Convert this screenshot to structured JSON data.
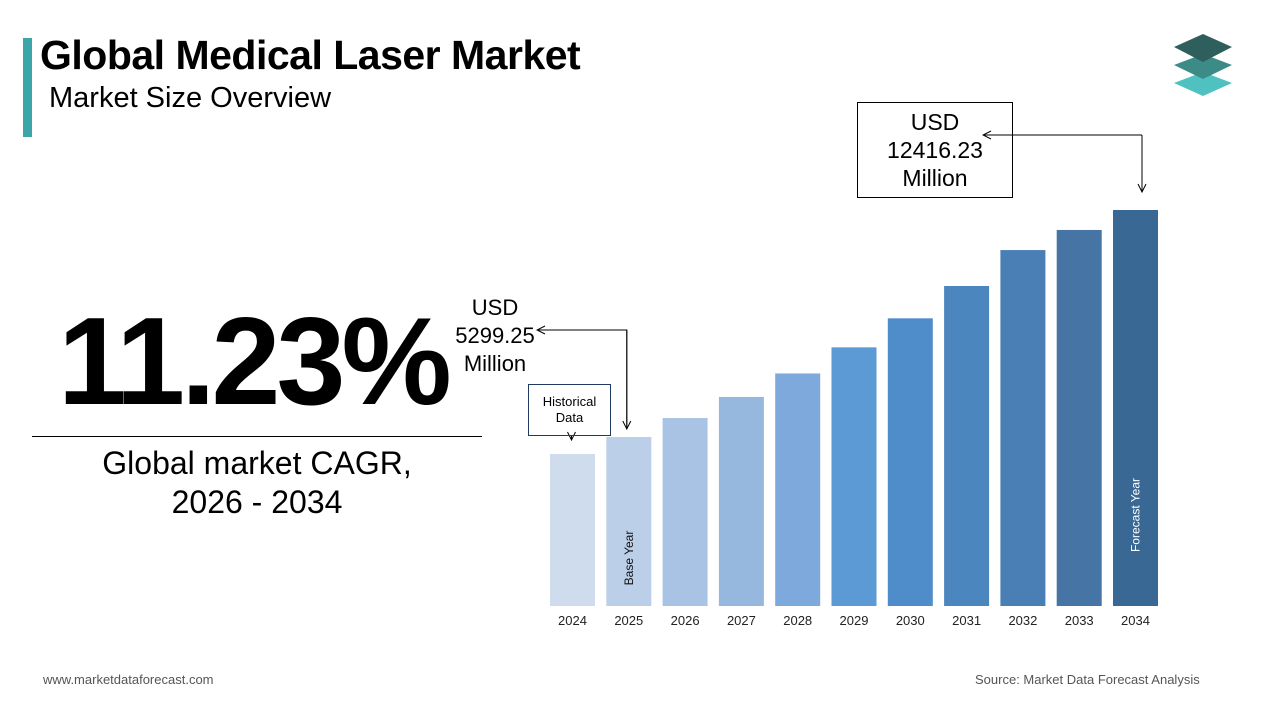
{
  "header": {
    "title": "Global Medical Laser Market",
    "subtitle": "Market Size Overview"
  },
  "logo": {
    "icon": "stacked-layers-icon",
    "colors": [
      "#2e5f5c",
      "#3d8b87",
      "#4fc1c0"
    ]
  },
  "cagr": {
    "value": "11.23%",
    "label_line1": "Global market CAGR,",
    "label_line2": "2026 - 2034"
  },
  "callouts": {
    "start": {
      "line1": "USD",
      "line2": "5299.25",
      "line3": "Million"
    },
    "end": {
      "line1": "USD",
      "line2": "12416.23",
      "line3": "Million"
    },
    "historical": {
      "line1": "Historical",
      "line2": "Data"
    }
  },
  "chart_data": {
    "type": "bar",
    "categories": [
      "2024",
      "2025",
      "2026",
      "2027",
      "2028",
      "2029",
      "2030",
      "2031",
      "2032",
      "2033",
      "2034"
    ],
    "values": [
      4765,
      5299.25,
      5894,
      6555,
      7291,
      8110,
      9020,
      10033,
      11160,
      11790,
      12416.23
    ],
    "bar_annotations": {
      "2025": "Base Year",
      "2034": "Forecast Year"
    },
    "colors": [
      "#cfdcee",
      "#bccfe8",
      "#a9c3e4",
      "#96b8df",
      "#7ea9dc",
      "#5c9ad6",
      "#4f8cca",
      "#4b86bf",
      "#4a7fb5",
      "#4675a5",
      "#3a6894"
    ]
  },
  "footer": {
    "website": "www.marketdataforecast.com",
    "source": "Source: Market Data Forecast Analysis"
  }
}
